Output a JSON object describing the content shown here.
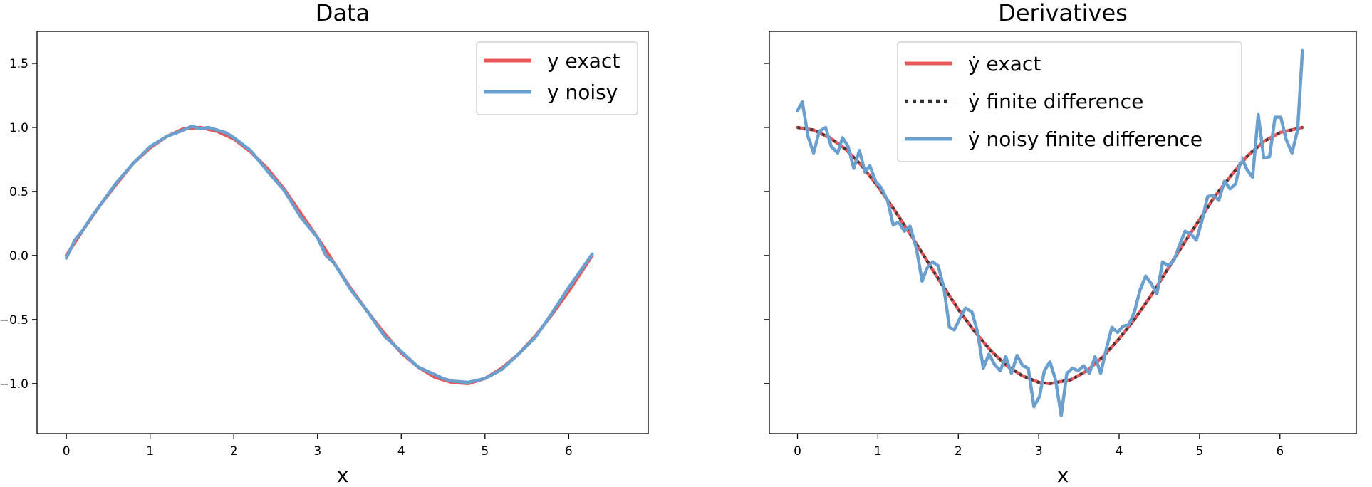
{
  "chart_data": [
    {
      "type": "line",
      "title": "Data",
      "xlabel": "x",
      "ylabel": "",
      "xlim": [
        -0.35,
        6.95
      ],
      "ylim": [
        -1.39,
        1.75
      ],
      "xticks": [
        0,
        1,
        2,
        3,
        4,
        5,
        6
      ],
      "yticks": [
        -1.0,
        -0.5,
        0.0,
        0.5,
        1.0,
        1.5
      ],
      "xtick_labels": [
        "0",
        "1",
        "2",
        "3",
        "4",
        "5",
        "6"
      ],
      "ytick_labels": [
        "−1.0",
        "−0.5",
        "0.0",
        "0.5",
        "1.0",
        "1.5"
      ],
      "grid": false,
      "legend_position": "top-right",
      "series": [
        {
          "name": "y exact",
          "color": "#e8585a",
          "style": "solid",
          "x": [
            0,
            0.2,
            0.4,
            0.6,
            0.8,
            1.0,
            1.2,
            1.4,
            1.6,
            1.8,
            2.0,
            2.2,
            2.4,
            2.6,
            2.8,
            3.0,
            3.2,
            3.4,
            3.6,
            3.8,
            4.0,
            4.2,
            4.4,
            4.6,
            4.8,
            5.0,
            5.2,
            5.4,
            5.6,
            5.8,
            6.0,
            6.28
          ],
          "y": [
            0.0,
            0.2,
            0.39,
            0.56,
            0.72,
            0.84,
            0.93,
            0.99,
            1.0,
            0.97,
            0.91,
            0.81,
            0.68,
            0.52,
            0.33,
            0.14,
            -0.06,
            -0.26,
            -0.44,
            -0.61,
            -0.76,
            -0.87,
            -0.95,
            -0.99,
            -1.0,
            -0.96,
            -0.88,
            -0.77,
            -0.63,
            -0.46,
            -0.28,
            0.0
          ]
        },
        {
          "name": "y noisy",
          "color": "#6b9fce",
          "style": "solid",
          "x": [
            0,
            0.1,
            0.2,
            0.3,
            0.4,
            0.6,
            0.8,
            1.0,
            1.2,
            1.4,
            1.5,
            1.6,
            1.7,
            1.8,
            1.9,
            2.0,
            2.2,
            2.4,
            2.6,
            2.8,
            3.0,
            3.1,
            3.2,
            3.4,
            3.6,
            3.8,
            4.0,
            4.2,
            4.4,
            4.5,
            4.6,
            4.8,
            5.0,
            5.2,
            5.4,
            5.6,
            5.8,
            6.0,
            6.28
          ],
          "y": [
            -0.02,
            0.12,
            0.2,
            0.3,
            0.39,
            0.57,
            0.72,
            0.85,
            0.93,
            0.98,
            1.01,
            0.99,
            1.0,
            0.98,
            0.96,
            0.92,
            0.82,
            0.66,
            0.51,
            0.3,
            0.14,
            0.0,
            -0.06,
            -0.27,
            -0.44,
            -0.63,
            -0.75,
            -0.87,
            -0.93,
            -0.96,
            -0.98,
            -0.99,
            -0.96,
            -0.89,
            -0.77,
            -0.64,
            -0.45,
            -0.25,
            0.01
          ]
        }
      ]
    },
    {
      "type": "line",
      "title": "Derivatives",
      "xlabel": "x",
      "ylabel": "",
      "xlim": [
        -0.35,
        6.95
      ],
      "ylim": [
        -1.39,
        1.75
      ],
      "xticks": [
        0,
        1,
        2,
        3,
        4,
        5,
        6
      ],
      "yticks": [
        -1.0,
        -0.5,
        0.0,
        0.5,
        1.0,
        1.5
      ],
      "xtick_labels": [
        "0",
        "1",
        "2",
        "3",
        "4",
        "5",
        "6"
      ],
      "ytick_labels": [],
      "grid": false,
      "legend_position": "top-center",
      "series": [
        {
          "name": "ẏ exact",
          "color": "#e8585a",
          "style": "solid",
          "x": [
            0,
            0.2,
            0.4,
            0.6,
            0.8,
            1.0,
            1.2,
            1.4,
            1.6,
            1.8,
            2.0,
            2.2,
            2.4,
            2.6,
            2.8,
            3.0,
            3.14,
            3.4,
            3.6,
            3.8,
            4.0,
            4.2,
            4.4,
            4.6,
            4.8,
            5.0,
            5.2,
            5.4,
            5.6,
            5.8,
            6.0,
            6.28
          ],
          "y": [
            1.0,
            0.98,
            0.92,
            0.83,
            0.7,
            0.54,
            0.36,
            0.17,
            -0.03,
            -0.23,
            -0.42,
            -0.59,
            -0.74,
            -0.86,
            -0.94,
            -0.99,
            -1.0,
            -0.97,
            -0.9,
            -0.79,
            -0.65,
            -0.49,
            -0.31,
            -0.11,
            0.09,
            0.28,
            0.47,
            0.63,
            0.78,
            0.89,
            0.96,
            1.0
          ]
        },
        {
          "name": "ẏ finite difference",
          "color": "#333333",
          "style": "dotted",
          "x": [
            0,
            0.2,
            0.4,
            0.6,
            0.8,
            1.0,
            1.2,
            1.4,
            1.6,
            1.8,
            2.0,
            2.2,
            2.4,
            2.6,
            2.8,
            3.0,
            3.14,
            3.4,
            3.6,
            3.8,
            4.0,
            4.2,
            4.4,
            4.6,
            4.8,
            5.0,
            5.2,
            5.4,
            5.6,
            5.8,
            6.0,
            6.28
          ],
          "y": [
            1.0,
            0.98,
            0.92,
            0.83,
            0.7,
            0.54,
            0.36,
            0.17,
            -0.03,
            -0.23,
            -0.42,
            -0.59,
            -0.74,
            -0.86,
            -0.94,
            -0.99,
            -1.0,
            -0.97,
            -0.9,
            -0.79,
            -0.65,
            -0.49,
            -0.31,
            -0.11,
            0.09,
            0.28,
            0.47,
            0.63,
            0.78,
            0.89,
            0.96,
            1.0
          ]
        },
        {
          "name": "ẏ noisy finite difference",
          "color": "#6b9fce",
          "style": "solid",
          "x": [
            0,
            0.06,
            0.13,
            0.2,
            0.27,
            0.35,
            0.42,
            0.5,
            0.56,
            0.63,
            0.7,
            0.77,
            0.84,
            0.9,
            0.97,
            1.04,
            1.12,
            1.19,
            1.26,
            1.33,
            1.4,
            1.48,
            1.55,
            1.61,
            1.68,
            1.75,
            1.82,
            1.89,
            1.95,
            2.02,
            2.09,
            2.17,
            2.24,
            2.31,
            2.38,
            2.45,
            2.52,
            2.59,
            2.66,
            2.73,
            2.8,
            2.87,
            2.94,
            3.01,
            3.07,
            3.14,
            3.21,
            3.28,
            3.35,
            3.42,
            3.49,
            3.56,
            3.63,
            3.7,
            3.77,
            3.84,
            3.91,
            3.98,
            4.05,
            4.12,
            4.19,
            4.26,
            4.33,
            4.4,
            4.47,
            4.54,
            4.61,
            4.68,
            4.75,
            4.82,
            4.89,
            4.96,
            5.03,
            5.1,
            5.17,
            5.24,
            5.31,
            5.38,
            5.45,
            5.52,
            5.59,
            5.66,
            5.73,
            5.8,
            5.87,
            5.94,
            6.01,
            6.08,
            6.15,
            6.22,
            6.28
          ],
          "y": [
            1.13,
            1.2,
            0.93,
            0.8,
            0.97,
            1.0,
            0.85,
            0.8,
            0.92,
            0.85,
            0.68,
            0.82,
            0.65,
            0.7,
            0.58,
            0.53,
            0.43,
            0.24,
            0.26,
            0.19,
            0.23,
            0.05,
            -0.2,
            -0.1,
            -0.05,
            -0.08,
            -0.25,
            -0.56,
            -0.58,
            -0.49,
            -0.41,
            -0.44,
            -0.6,
            -0.88,
            -0.77,
            -0.85,
            -0.9,
            -0.79,
            -0.92,
            -0.78,
            -0.86,
            -0.88,
            -1.18,
            -1.1,
            -0.9,
            -0.83,
            -0.97,
            -1.25,
            -0.92,
            -0.88,
            -0.9,
            -0.86,
            -0.92,
            -0.79,
            -0.92,
            -0.73,
            -0.56,
            -0.6,
            -0.55,
            -0.54,
            -0.44,
            -0.27,
            -0.16,
            -0.22,
            -0.3,
            -0.05,
            -0.08,
            -0.04,
            0.08,
            0.19,
            0.17,
            0.12,
            0.27,
            0.46,
            0.47,
            0.43,
            0.58,
            0.52,
            0.56,
            0.77,
            0.67,
            0.61,
            1.1,
            0.76,
            0.77,
            1.08,
            1.08,
            0.9,
            0.8,
            0.98,
            1.6
          ]
        }
      ]
    }
  ]
}
